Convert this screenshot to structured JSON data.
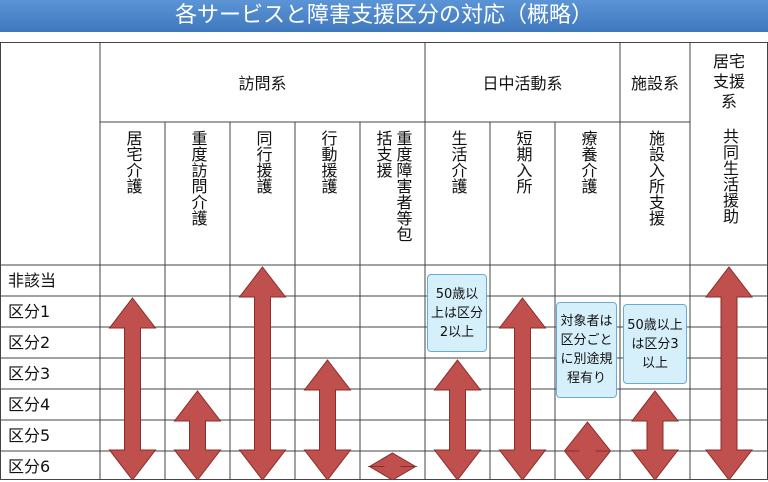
{
  "title": "各サービスと障害支援区分の対応（概略）",
  "table": {
    "groups": [
      "訪問系",
      "日中活動系",
      "施設系",
      "居宅支援系"
    ],
    "services": [
      "居宅介護",
      "重度訪問介護",
      "同行援護",
      "行動援護",
      "重度障害者等包括支援",
      "生活介護",
      "短期入所",
      "療養介護",
      "施設入所支援",
      "共同生活援助"
    ],
    "levels": [
      "非該当",
      "区分1",
      "区分2",
      "区分3",
      "区分4",
      "区分5",
      "区分6"
    ],
    "notes": [
      "50歳以上は区分2以上",
      "対象者は区分ごとに別途規程有り",
      "50歳以上は区分3以上"
    ]
  }
}
